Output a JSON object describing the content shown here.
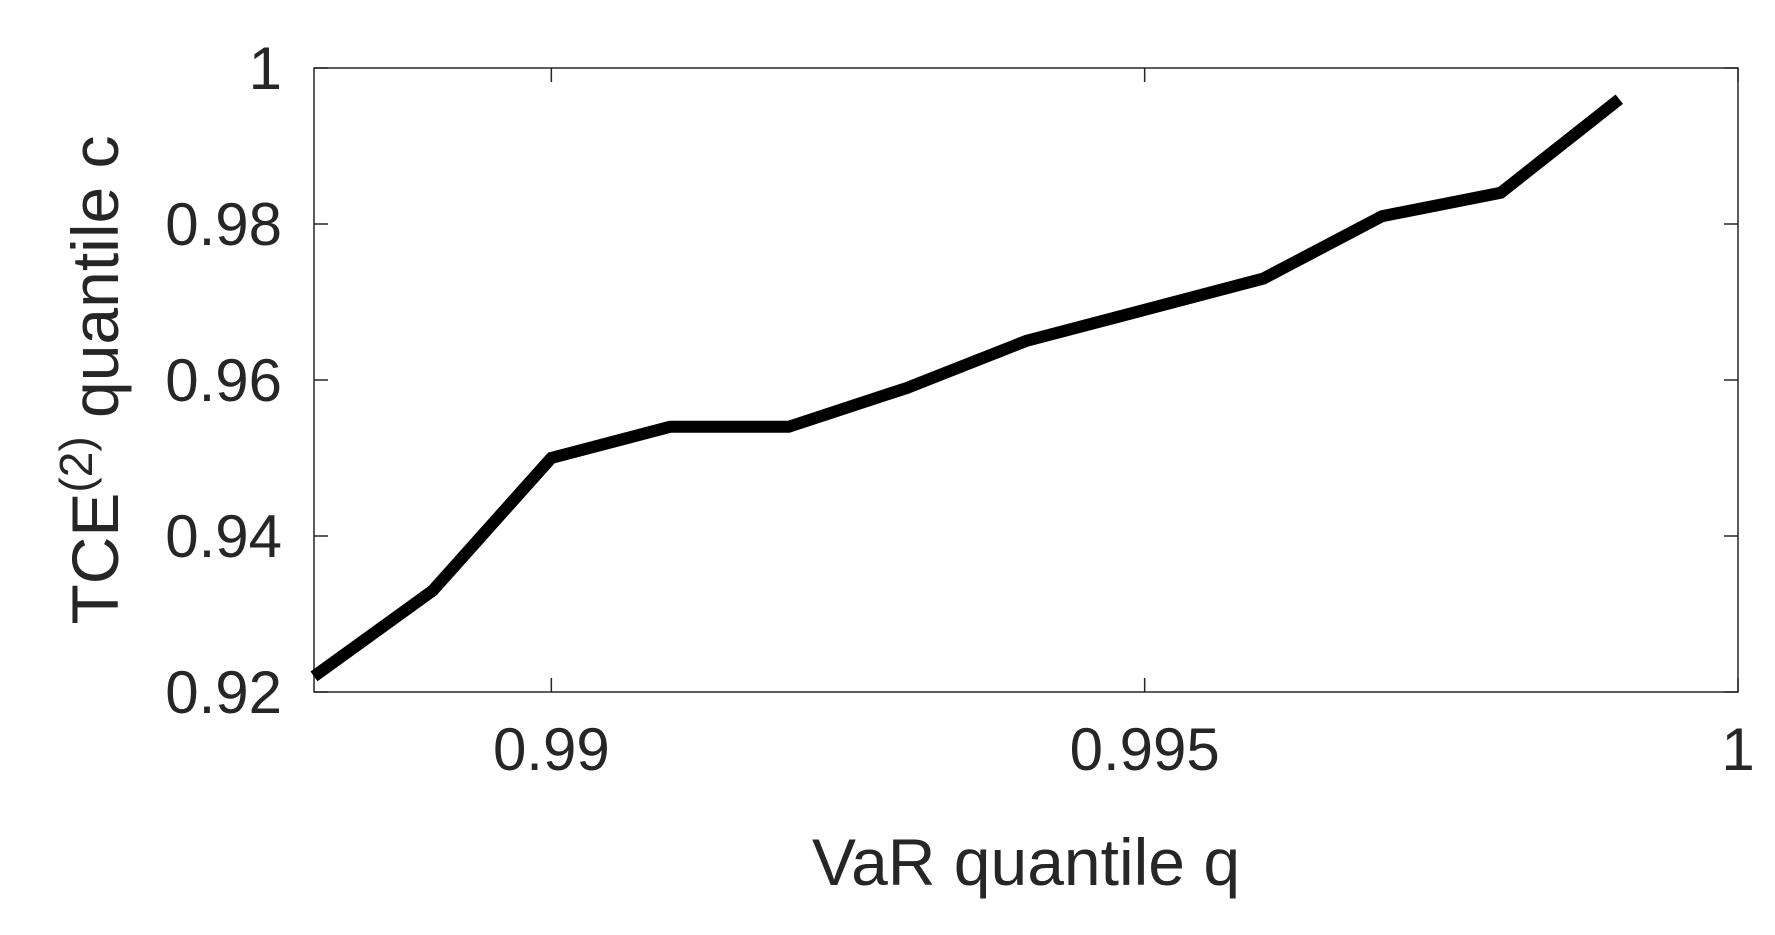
{
  "chart_data": {
    "type": "line",
    "xlabel": "VaR quantile q",
    "ylabel_main": "TCE",
    "ylabel_superscript": "(2)",
    "ylabel_suffix": " quantile c",
    "xlim": [
      0.988,
      1.0
    ],
    "ylim": [
      0.92,
      1.0
    ],
    "x_ticks": [
      0.99,
      0.995,
      1.0
    ],
    "x_tick_labels": [
      "0.99",
      "0.995",
      "1"
    ],
    "y_ticks": [
      0.92,
      0.94,
      0.96,
      0.98,
      1.0
    ],
    "y_tick_labels": [
      "0.92",
      "0.94",
      "0.96",
      "0.98",
      "1"
    ],
    "grid": false,
    "line_color": "#000000",
    "axes_color": "#262626",
    "series": [
      {
        "x": [
          0.988,
          0.989,
          0.99,
          0.991,
          0.992,
          0.993,
          0.994,
          0.995,
          0.996,
          0.997,
          0.998,
          0.999
        ],
        "y": [
          0.922,
          0.933,
          0.95,
          0.954,
          0.954,
          0.959,
          0.965,
          0.969,
          0.973,
          0.981,
          0.984,
          0.996
        ]
      }
    ]
  }
}
